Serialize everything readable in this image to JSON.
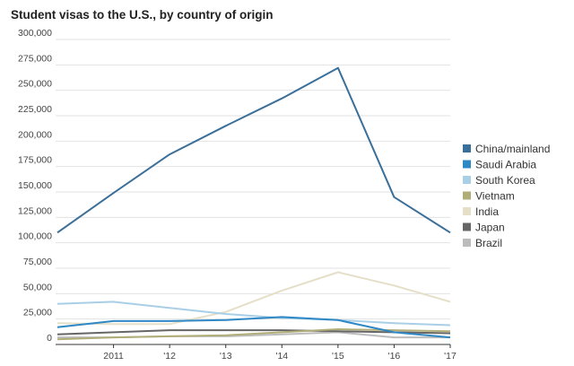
{
  "title": "Student visas to the U.S., by country of origin",
  "chart_data": {
    "type": "line",
    "title": "Student visas to the U.S., by country of origin",
    "xlabel": "",
    "ylabel": "",
    "x": [
      2010,
      2011,
      2012,
      2013,
      2014,
      2015,
      2016,
      2017
    ],
    "x_tick_values": [
      2011,
      2012,
      2013,
      2014,
      2015,
      2016,
      2017
    ],
    "x_tick_labels": [
      "2011",
      "'12",
      "'13",
      "'14",
      "'15",
      "'16",
      "'17"
    ],
    "xlim": [
      2010,
      2017
    ],
    "ylim": [
      0,
      300000
    ],
    "y_ticks": [
      0,
      25000,
      50000,
      75000,
      100000,
      125000,
      150000,
      175000,
      200000,
      225000,
      250000,
      275000,
      300000
    ],
    "y_tick_labels": [
      "0",
      "25,000",
      "50,000",
      "75,000",
      "100,000",
      "125,000",
      "150,000",
      "175,000",
      "200,000",
      "225,000",
      "250,000",
      "275,000",
      "300,000"
    ],
    "grid": true,
    "legend_position": "right",
    "series": [
      {
        "name": "China/mainland",
        "color": "#3a6f9a",
        "values": [
          110000,
          149000,
          187000,
          215000,
          242000,
          272000,
          145000,
          110000
        ]
      },
      {
        "name": "Saudi Arabia",
        "color": "#2f88c6",
        "values": [
          17000,
          23000,
          23000,
          24000,
          27000,
          24000,
          12000,
          7000
        ]
      },
      {
        "name": "South Korea",
        "color": "#a9cfe6",
        "values": [
          40000,
          42000,
          36000,
          30000,
          26000,
          24000,
          21000,
          19000
        ]
      },
      {
        "name": "Vietnam",
        "color": "#b1ad78",
        "values": [
          5000,
          7000,
          8000,
          9000,
          12000,
          15000,
          14000,
          13000
        ]
      },
      {
        "name": "India",
        "color": "#e5dfc8",
        "values": [
          21000,
          20000,
          20000,
          32000,
          53000,
          71000,
          58000,
          42000
        ]
      },
      {
        "name": "Japan",
        "color": "#666666",
        "values": [
          10000,
          12000,
          14000,
          14000,
          14000,
          13000,
          12000,
          11000
        ]
      },
      {
        "name": "Brazil",
        "color": "#bcbcbc",
        "values": [
          7000,
          7000,
          8000,
          8000,
          10000,
          12000,
          7000,
          7000
        ]
      }
    ]
  }
}
